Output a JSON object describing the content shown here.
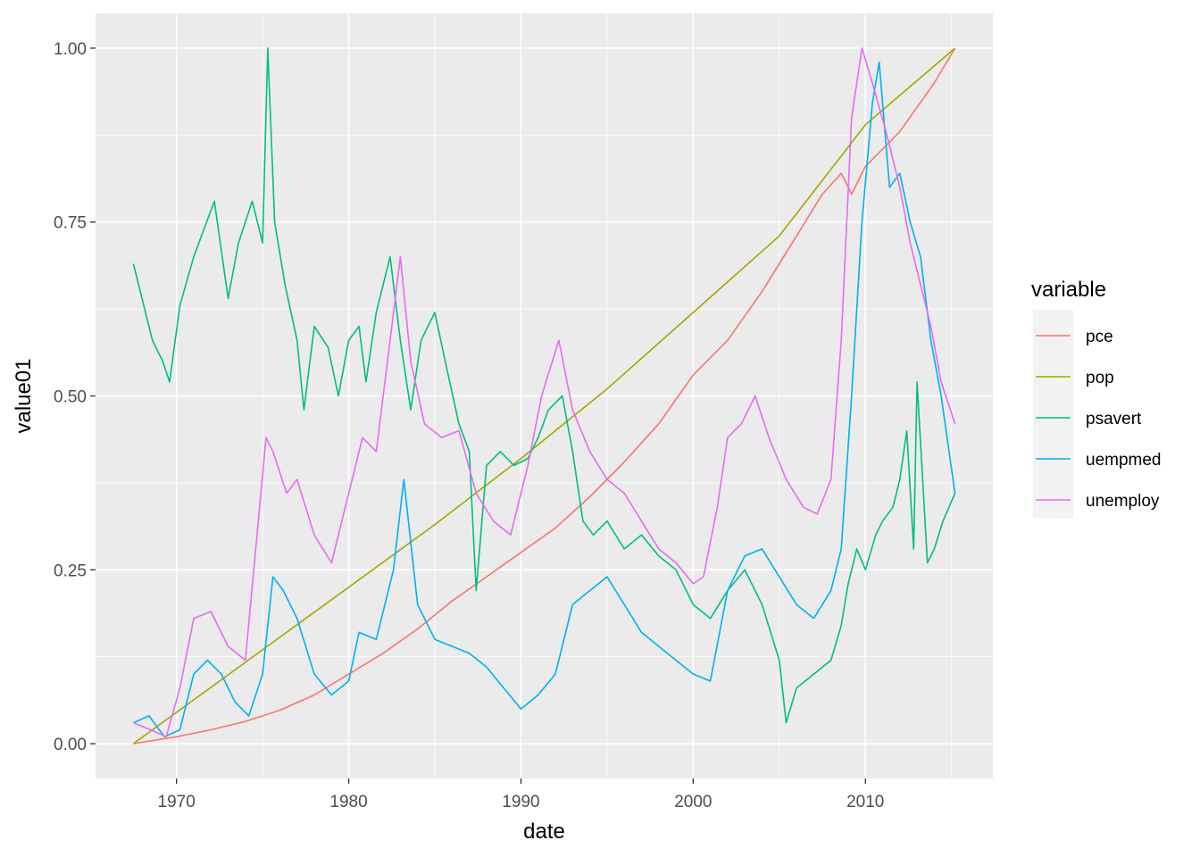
{
  "chart_data": {
    "type": "line",
    "xlabel": "date",
    "ylabel": "value01",
    "xlim": [
      1965.3,
      2017.4
    ],
    "ylim": [
      -0.05,
      1.05
    ],
    "x_ticks": [
      1970,
      1980,
      1990,
      2000,
      2010
    ],
    "x_tick_labels": [
      "1970",
      "1980",
      "1990",
      "2000",
      "2010"
    ],
    "y_ticks": [
      0,
      0.25,
      0.5,
      0.75,
      1
    ],
    "y_tick_labels": [
      "0.00",
      "0.25",
      "0.50",
      "0.75",
      "1.00"
    ],
    "grid": true,
    "panel_background": "#ebebeb",
    "legend": {
      "title": "variable",
      "position": "right"
    },
    "series": [
      {
        "name": "pce",
        "color": "#f8766d",
        "x": [
          1967.5,
          1970,
          1972,
          1974,
          1976,
          1978,
          1980,
          1982,
          1984,
          1986,
          1988,
          1990,
          1992,
          1994,
          1996,
          1998,
          2000,
          2002,
          2004,
          2006,
          2007.5,
          2008.6,
          2009.2,
          2010,
          2012,
          2014,
          2015.2
        ],
        "y": [
          0.0,
          0.01,
          0.02,
          0.032,
          0.048,
          0.07,
          0.1,
          0.13,
          0.165,
          0.205,
          0.24,
          0.275,
          0.31,
          0.355,
          0.405,
          0.46,
          0.53,
          0.58,
          0.65,
          0.73,
          0.79,
          0.82,
          0.79,
          0.83,
          0.88,
          0.95,
          1.0
        ]
      },
      {
        "name": "pop",
        "color": "#a3a500",
        "x": [
          1967.5,
          1970,
          1975,
          1980,
          1985,
          1990,
          1995,
          2000,
          2005,
          2010,
          2015.2
        ],
        "y": [
          0.0,
          0.045,
          0.135,
          0.225,
          0.315,
          0.41,
          0.51,
          0.62,
          0.73,
          0.89,
          1.0
        ]
      },
      {
        "name": "psavert",
        "color": "#00bf7d",
        "x": [
          1967.5,
          1968,
          1968.6,
          1969.2,
          1969.6,
          1970.2,
          1971,
          1971.6,
          1972.2,
          1973,
          1973.6,
          1974.4,
          1975,
          1975.3,
          1975.7,
          1976.3,
          1977,
          1977.4,
          1978,
          1978.8,
          1979.4,
          1980,
          1980.6,
          1981,
          1981.6,
          1982.4,
          1983,
          1983.6,
          1984.2,
          1985,
          1985.6,
          1986.4,
          1987,
          1987.4,
          1988,
          1988.8,
          1989.6,
          1990.4,
          1991,
          1991.6,
          1992.4,
          1993,
          1993.6,
          1994.2,
          1995,
          1996,
          1997,
          1998,
          1999,
          2000,
          2001,
          2002,
          2003,
          2004,
          2005,
          2005.4,
          2006,
          2007,
          2008,
          2008.6,
          2009,
          2009.5,
          2010,
          2010.6,
          2011,
          2011.6,
          2012,
          2012.4,
          2012.8,
          2013,
          2013.6,
          2014,
          2014.5,
          2015.2
        ],
        "y": [
          0.69,
          0.64,
          0.58,
          0.55,
          0.52,
          0.63,
          0.7,
          0.74,
          0.78,
          0.64,
          0.72,
          0.78,
          0.72,
          1.0,
          0.75,
          0.66,
          0.58,
          0.48,
          0.6,
          0.57,
          0.5,
          0.58,
          0.6,
          0.52,
          0.62,
          0.7,
          0.58,
          0.48,
          0.58,
          0.62,
          0.55,
          0.46,
          0.42,
          0.22,
          0.4,
          0.42,
          0.4,
          0.41,
          0.44,
          0.48,
          0.5,
          0.42,
          0.32,
          0.3,
          0.32,
          0.28,
          0.3,
          0.27,
          0.25,
          0.2,
          0.18,
          0.22,
          0.25,
          0.2,
          0.12,
          0.03,
          0.08,
          0.1,
          0.12,
          0.17,
          0.23,
          0.28,
          0.25,
          0.3,
          0.32,
          0.34,
          0.38,
          0.45,
          0.28,
          0.52,
          0.26,
          0.28,
          0.32,
          0.36
        ]
      },
      {
        "name": "uempmed",
        "color": "#00b0f6",
        "x": [
          1967.5,
          1968.4,
          1969.3,
          1970.2,
          1971,
          1971.8,
          1972.6,
          1973.4,
          1974.2,
          1975,
          1975.6,
          1976.2,
          1977,
          1978,
          1979,
          1980,
          1980.6,
          1981.6,
          1982.6,
          1983.2,
          1984,
          1985,
          1986,
          1987,
          1988,
          1989,
          1990,
          1991,
          1992,
          1993,
          1994,
          1995,
          1996,
          1997,
          1998,
          1999,
          2000,
          2001,
          2002,
          2003,
          2004,
          2005,
          2006,
          2007,
          2008,
          2008.6,
          2009.2,
          2009.8,
          2010.4,
          2010.8,
          2011.4,
          2012,
          2012.6,
          2013.2,
          2013.8,
          2014.4,
          2015.2
        ],
        "y": [
          0.03,
          0.04,
          0.01,
          0.02,
          0.1,
          0.12,
          0.1,
          0.06,
          0.04,
          0.1,
          0.24,
          0.22,
          0.18,
          0.1,
          0.07,
          0.09,
          0.16,
          0.15,
          0.25,
          0.38,
          0.2,
          0.15,
          0.14,
          0.13,
          0.11,
          0.08,
          0.05,
          0.07,
          0.1,
          0.2,
          0.22,
          0.24,
          0.2,
          0.16,
          0.14,
          0.12,
          0.1,
          0.09,
          0.22,
          0.27,
          0.28,
          0.24,
          0.2,
          0.18,
          0.22,
          0.28,
          0.5,
          0.75,
          0.92,
          0.98,
          0.8,
          0.82,
          0.75,
          0.7,
          0.58,
          0.5,
          0.36
        ]
      },
      {
        "name": "unemploy",
        "color": "#e76bf3",
        "x": [
          1967.5,
          1968.5,
          1969.4,
          1970.2,
          1971,
          1972,
          1973,
          1974,
          1974.6,
          1975.2,
          1975.6,
          1976.4,
          1977,
          1978,
          1979,
          1980,
          1980.8,
          1981.6,
          1982.4,
          1983,
          1983.6,
          1984.4,
          1985.4,
          1986.4,
          1987.4,
          1988.4,
          1989.4,
          1990.4,
          1991.2,
          1992.2,
          1993,
          1994,
          1995,
          1996,
          1997,
          1998,
          1999,
          2000,
          2000.6,
          2001.4,
          2002,
          2002.8,
          2003.6,
          2004.4,
          2005.4,
          2006.4,
          2007.2,
          2008,
          2008.6,
          2009.2,
          2009.8,
          2010.4,
          2011.2,
          2012,
          2012.6,
          2013.2,
          2013.8,
          2014.4,
          2015.2
        ],
        "y": [
          0.03,
          0.02,
          0.01,
          0.08,
          0.18,
          0.19,
          0.14,
          0.12,
          0.28,
          0.44,
          0.42,
          0.36,
          0.38,
          0.3,
          0.26,
          0.36,
          0.44,
          0.42,
          0.58,
          0.7,
          0.55,
          0.46,
          0.44,
          0.45,
          0.36,
          0.32,
          0.3,
          0.4,
          0.5,
          0.58,
          0.48,
          0.42,
          0.38,
          0.36,
          0.32,
          0.28,
          0.26,
          0.23,
          0.24,
          0.34,
          0.44,
          0.46,
          0.5,
          0.44,
          0.38,
          0.34,
          0.33,
          0.38,
          0.58,
          0.9,
          1.0,
          0.95,
          0.88,
          0.8,
          0.72,
          0.66,
          0.6,
          0.52,
          0.46
        ]
      }
    ]
  }
}
